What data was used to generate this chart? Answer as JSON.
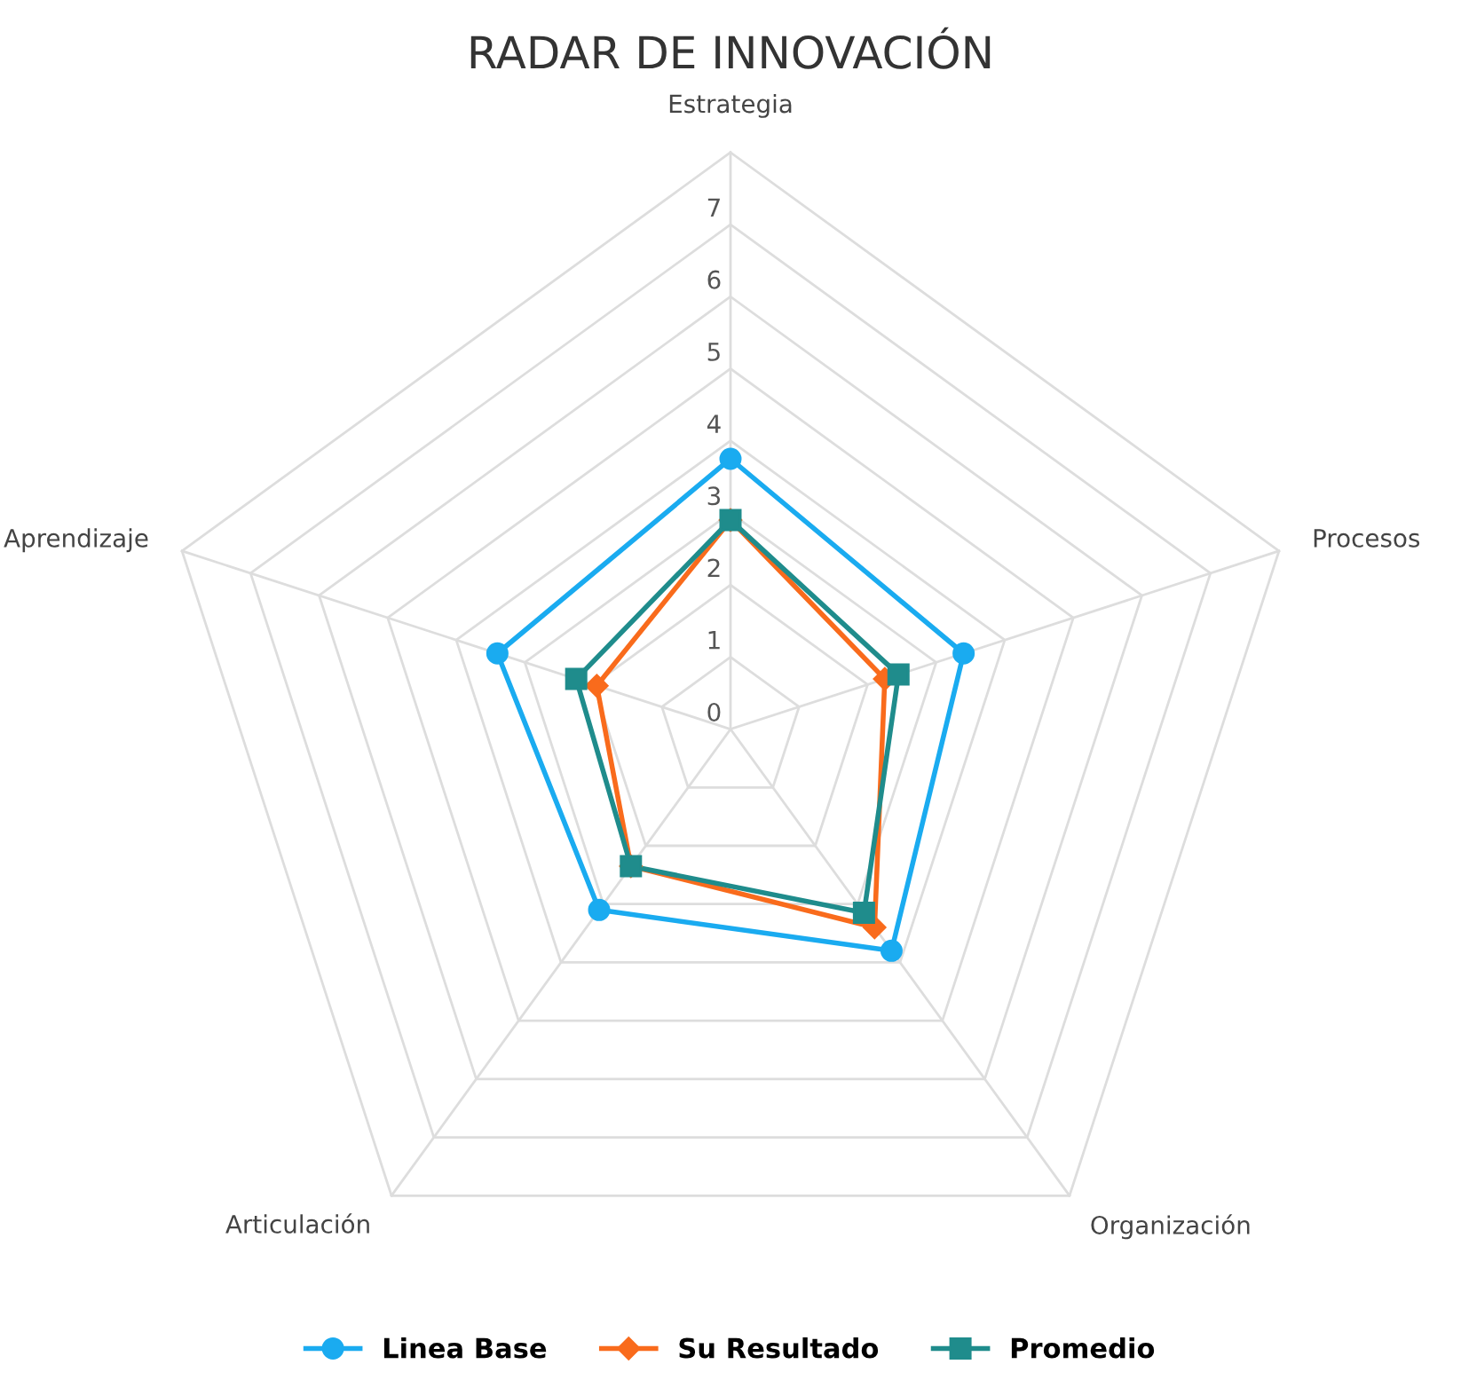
{
  "chart_data": {
    "type": "radar",
    "title": "RADAR DE INNOVACIÓN",
    "categories": [
      "Estrategia",
      "Procesos",
      "Organización",
      "Articulación",
      "Aprendizaje"
    ],
    "ylim": [
      0,
      8
    ],
    "yticks": [
      0,
      1,
      2,
      3,
      4,
      5,
      6,
      7
    ],
    "grid": true,
    "legend": "bottom",
    "series": [
      {
        "name": "Linea Base",
        "color": "#1aabf0",
        "marker": "circle",
        "values": [
          3.75,
          3.4,
          3.8,
          3.1,
          3.4
        ]
      },
      {
        "name": "Su Resultado",
        "color": "#f96b1c",
        "marker": "diamond",
        "values": [
          2.9,
          2.25,
          3.4,
          2.35,
          1.95
        ]
      },
      {
        "name": "Promedio",
        "color": "#1f8c8c",
        "marker": "square",
        "values": [
          2.9,
          2.45,
          3.15,
          2.35,
          2.25
        ]
      }
    ]
  }
}
